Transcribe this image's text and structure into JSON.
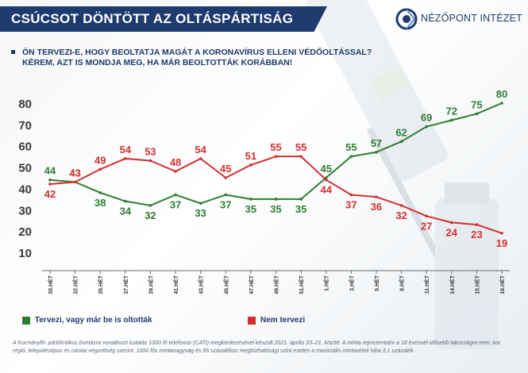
{
  "header": {
    "title": "CSÚCSOT DÖNTÖTT AZ OLTÁSPÁRTISÁG",
    "logo_text": "NÉZŐPONT INTÉZET"
  },
  "question": {
    "line1": "ÖN TERVEZI-E, HOGY BEOLTATJA MAGÁT A KORONAVÍRUS ELLENI VÉDŐOLTÁSSAL?",
    "line2": "KÉREM, AZT IS MONDJA MEG, HA MÁR BEOLTOTTÁK KORÁBBAN!"
  },
  "footnote": "A Kormányfő- párti/kritikus bontásra vonatkozó kutatás 1000 fő telefonos (CATI) megkérdezésével készült 2021. április 20–21. között. A minta reprezentatív a 18 évesnél idősebb lakosságra nem, kor, régió, településtípus és iskolai végzettség szerint. 1000 fős mintanagyság és 95 százalékos megbízhatósági szint esetén a maximális mintavételi hiba 3,1 százalék.",
  "colors": {
    "green": "#2e7d32",
    "red": "#d32f2f",
    "navy": "#1f3a6d",
    "axis": "#3a3a3a"
  },
  "chart_data": {
    "type": "line",
    "title": "",
    "xlabel": "",
    "ylabel": "",
    "ylim": [
      10,
      80
    ],
    "yticks": [
      10,
      20,
      30,
      40,
      50,
      60,
      70,
      80
    ],
    "grid": false,
    "legend_position": "bottom-left",
    "categories": [
      "30.HÉT",
      "32.HÉT",
      "35.HÉT",
      "37.HÉT",
      "39.HÉT",
      "41.HÉT",
      "43.HÉT",
      "45.HÉT",
      "47.HÉT",
      "49.HÉT",
      "51.HÉT",
      "1.HÉT",
      "3.HÉT",
      "5.HÉT",
      "8.HÉT",
      "11.HÉT",
      "14.HÉT",
      "15.HÉT",
      "16.HÉT"
    ],
    "series": [
      {
        "name": "Tervezi, vagy már be is oltották",
        "color": "#2e7d32",
        "values": [
          44,
          43,
          38,
          34,
          32,
          37,
          33,
          37,
          35,
          35,
          35,
          45,
          55,
          57,
          62,
          69,
          72,
          75,
          80
        ]
      },
      {
        "name": "Nem tervezi",
        "color": "#d32f2f",
        "values": [
          42,
          43,
          49,
          54,
          53,
          48,
          54,
          45,
          51,
          55,
          55,
          44,
          37,
          36,
          32,
          27,
          24,
          23,
          19
        ]
      }
    ]
  }
}
